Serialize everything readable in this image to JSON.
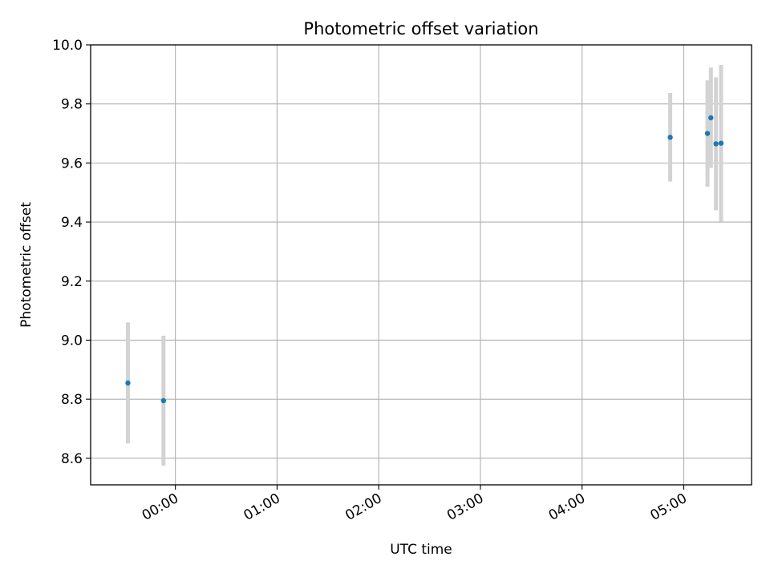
{
  "chart_data": {
    "type": "scatter",
    "title": "Photometric offset variation",
    "xlabel": "UTC time",
    "ylabel": "Photometric offset",
    "x_unit": "hours (UTC)",
    "xlim": [
      "23:10",
      "05:40"
    ],
    "ylim": [
      8.51,
      10.0
    ],
    "grid": true,
    "x_ticks": [
      {
        "value": "00:00",
        "label": "00:00"
      },
      {
        "value": "01:00",
        "label": "01:00"
      },
      {
        "value": "02:00",
        "label": "02:00"
      },
      {
        "value": "03:00",
        "label": "03:00"
      },
      {
        "value": "04:00",
        "label": "04:00"
      },
      {
        "value": "05:00",
        "label": "05:00"
      }
    ],
    "y_ticks": [
      8.6,
      8.8,
      9.0,
      9.2,
      9.4,
      9.6,
      9.8,
      10.0
    ],
    "y_tick_labels": [
      "8.6",
      "8.8",
      "9.0",
      "9.2",
      "9.4",
      "9.6",
      "9.8",
      "10.0"
    ],
    "point_color": "#1f77b4",
    "errorbar_color": "#d3d3d3",
    "points": [
      {
        "time": "23:32",
        "y": 8.855,
        "yerr": 0.205
      },
      {
        "time": "23:53",
        "y": 8.795,
        "yerr": 0.22
      },
      {
        "time": "04:52",
        "y": 9.687,
        "yerr": 0.15
      },
      {
        "time": "05:14",
        "y": 9.7,
        "yerr": 0.18
      },
      {
        "time": "05:16",
        "y": 9.753,
        "yerr": 0.17
      },
      {
        "time": "05:19",
        "y": 9.665,
        "yerr": 0.225
      },
      {
        "time": "05:22",
        "y": 9.667,
        "yerr": 0.265
      }
    ]
  }
}
